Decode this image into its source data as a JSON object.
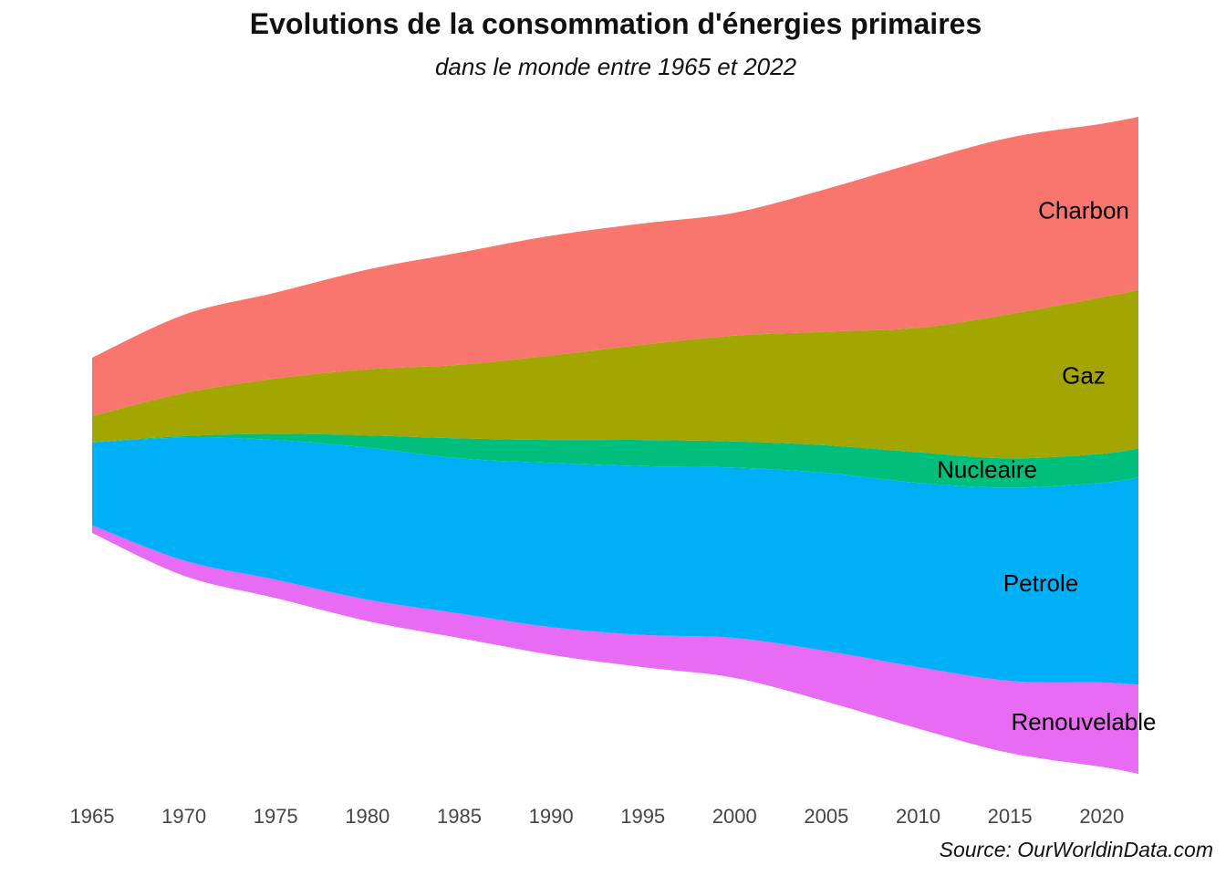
{
  "title": "Evolutions de la consommation d'énergies primaires",
  "subtitle": "dans le monde entre 1965 et 2022",
  "caption": "Source: OurWorldinData.com",
  "chart_data": {
    "type": "area",
    "layout": "streamgraph",
    "grid": false,
    "legend": "direct labels",
    "xlim": [
      1965,
      2022
    ],
    "xticks": [
      1965,
      1970,
      1975,
      1980,
      1985,
      1990,
      1995,
      2000,
      2005,
      2010,
      2015,
      2020
    ],
    "x": [
      1965,
      1970,
      1975,
      1980,
      1985,
      1990,
      1995,
      2000,
      2005,
      2010,
      2015,
      2020,
      2022
    ],
    "series": [
      {
        "name": "Renouvelable",
        "color": "#E76BF3",
        "values": [
          5,
          10,
          12,
          14,
          16,
          18,
          21,
          26,
          33,
          40,
          47,
          55,
          58
        ]
      },
      {
        "name": "Petrole",
        "color": "#00B0F6",
        "values": [
          54,
          80,
          91,
          99,
          101,
          107,
          110,
          111,
          116,
          120,
          126,
          130,
          135
        ]
      },
      {
        "name": "Nucleaire",
        "color": "#00BF7D",
        "values": [
          0.2,
          1,
          4,
          8,
          13,
          15,
          17,
          17,
          18,
          20,
          19,
          19,
          19
        ]
      },
      {
        "name": "Gaz",
        "color": "#A3A500",
        "values": [
          17,
          28,
          36,
          43,
          48,
          55,
          62,
          69,
          74,
          81,
          94,
          102,
          103
        ]
      },
      {
        "name": "Charbon",
        "color": "#F8766D",
        "values": [
          38,
          51,
          56,
          65,
          73,
          78,
          79,
          80,
          93,
          108,
          115,
          113,
          113
        ]
      }
    ]
  }
}
